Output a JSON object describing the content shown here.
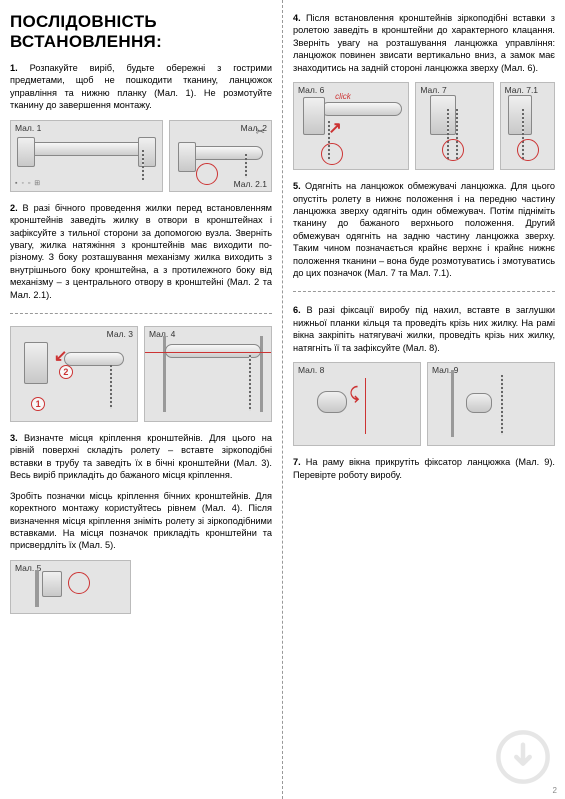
{
  "title": "ПОСЛІДОВНІСТЬ ВСТАНОВЛЕННЯ:",
  "left": {
    "s1": "1. Розпакуйте виріб, будьте обережні з гострими предметами, щоб не пошкодити тканину, ланцюжок управління та нижню планку (Мал. 1). Не розмотуйте тканину до завершення монтажу.",
    "s2": "2. В разі бічного проведення жилки перед встановленням кронштейнів заведіть жилку в отвори в кронштейнах і зафіксуйте з тильної сторони за допомогою вузла. Зверніть увагу, жилка натяжіння з кронштейнів має виходити по-різному. З боку розташування механізму жилка виходить з внутрішнього боку кронштейна, а з протилежного боку від механізму – з центрального отвору в кронштейні (Мал. 2 та Мал. 2.1).",
    "s3": "3. Визначте місця кріплення кронштейнів. Для цього на рівній поверхні складіть ролету – вставте зіркоподібні вставки в трубу та заведіть їх в бічні кронштейни (Мал. 3). Весь виріб прикладіть до бажаного місця кріплення.",
    "s3b": "Зробіть позначки місць кріплення бічних кронштейнів. Для коректного монтажу користуйтесь рівнем (Мал. 4). Після визначення місця кріплення зніміть ролету зі зіркоподібними вставками. На місця позначок прикладіть кронштейни та присвердліть їх (Мал. 5)."
  },
  "right": {
    "s4": "4. Після встановлення кронштейнів зіркоподібні вставки з ролетою заведіть в кронштейни до характерного клацання. Зверніть увагу на розташування ланцюжка управління: ланцюжок повинен звисати вертикально вниз, а замок має знаходитись на задній стороні ланцюжка зверху (Мал. 6).",
    "s5": "5. Одягніть на ланцюжок обмежувачі ланцюжка. Для цього опустіть ролету в нижнє положення і на передню частину ланцюжка зверху одягніть один обмежувач. Потім підніміть тканину до бажаного верхнього положення. Другий обмежувач одягніть на задню частину ланцюжка зверху. Таким чином позначається крайнє верхнє і крайнє нижнє положення тканини – вона буде розмотуватись і змотуватись до цих позначок (Мал. 7 та Мал. 7.1).",
    "s6": "6. В разі фіксації виробу під нахил, вставте в заглушки нижньої планки кільця та проведіть крізь них жилку. На рамі вікна закріпіть натягувачі жилки, проведіть крізь них жилку, натягніть її та зафіксуйте (Мал. 8).",
    "s7": "7. На раму вікна прикрутіть фіксатор ланцюжка (Мал. 9). Перевірте роботу виробу."
  },
  "labels": {
    "m1": "Мал. 1",
    "m2": "Мал. 2",
    "m21": "Мал. 2.1",
    "m3": "Мал. 3",
    "m4": "Мал. 4",
    "m5": "Мал. 5",
    "m6": "Мал. 6",
    "m7": "Мал. 7",
    "m71": "Мал. 7.1",
    "m8": "Мал. 8",
    "m9": "Мал. 9",
    "click": "click",
    "pagenum": "2"
  },
  "colors": {
    "accent": "#c33",
    "dash": "#999",
    "fig_bg": "#e4e4e4"
  }
}
